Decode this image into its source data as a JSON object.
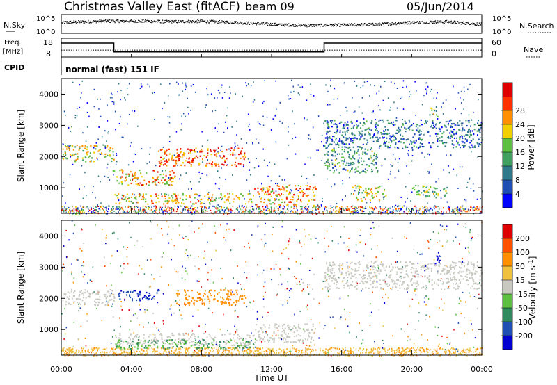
{
  "header": {
    "title": "Christmas Valley East (fitACF)",
    "beam": "beam 09",
    "date": "05/Jun/2014"
  },
  "noise_panel": {
    "left_label": "N.Sky",
    "right_label": "N.Search",
    "left_ticks": [
      "10^5",
      "10^0"
    ],
    "right_ticks": [
      "10^5",
      "10^0"
    ]
  },
  "freq_panel": {
    "left_label_1": "Freq.",
    "left_label_2": "[MHz]",
    "left_ticks": [
      "18",
      "8"
    ],
    "right_ticks": [
      "60",
      "0"
    ],
    "right_label": "Nave",
    "cpid_label": "CPID",
    "cpid_value": "normal (fast) 151 IF"
  },
  "chart_data": [
    {
      "type": "line",
      "name": "noise",
      "x": [
        "00:00",
        "24:00"
      ],
      "y_range_log": [
        0,
        5
      ],
      "description_series": [
        {
          "x": [
            0,
            2,
            4,
            6,
            8,
            10,
            12,
            14,
            16,
            18,
            20,
            22,
            24
          ],
          "y": [
            3.0,
            3.3,
            3.4,
            3.2,
            3.3,
            3.0,
            2.5,
            2.2,
            2.3,
            2.5,
            3.0,
            3.2,
            2.5
          ]
        }
      ]
    },
    {
      "type": "line",
      "name": "frequency-and-nave",
      "xlim_hours": [
        0,
        24
      ],
      "ylim_left": [
        8,
        18
      ],
      "ylim_right": [
        0,
        60
      ],
      "freq_steps": [
        {
          "from": 0,
          "to": 3.0,
          "value": 15.4
        },
        {
          "from": 3.0,
          "to": 15.0,
          "value": 10.7
        },
        {
          "from": 15.0,
          "to": 24,
          "value": 15.4
        }
      ],
      "nave_level": 22
    },
    {
      "type": "heatmap",
      "name": "power",
      "xlim_hours": [
        0,
        24
      ],
      "ylim": [
        180,
        4500
      ],
      "ylabel": "Slant Range [km]",
      "y_ticks": [
        1000,
        2000,
        3000,
        4000
      ],
      "colorbar": {
        "label": "Power [dB]",
        "ticks": [
          "4",
          "8",
          "12",
          "16",
          "20",
          "24",
          "28"
        ],
        "colors": [
          "#0000ff",
          "#1f4fb3",
          "#2f7a8a",
          "#3fa060",
          "#5dc040",
          "#f2d000",
          "#ff9000",
          "#ff3000",
          "#e00000"
        ]
      },
      "scatter_regions": [
        {
          "t0": 0,
          "t1": 3,
          "r0": 1850,
          "r1": 2400,
          "level": 18
        },
        {
          "t0": 2.9,
          "t1": 6.5,
          "r0": 1100,
          "r1": 1600,
          "level": 22
        },
        {
          "t0": 5.5,
          "t1": 10.5,
          "r0": 1700,
          "r1": 2300,
          "level": 26
        },
        {
          "t0": 3,
          "t1": 11,
          "r0": 500,
          "r1": 850,
          "level": 20
        },
        {
          "t0": 11,
          "t1": 14.5,
          "r0": 450,
          "r1": 1100,
          "level": 22
        },
        {
          "t0": 15,
          "t1": 18,
          "r0": 1500,
          "r1": 2300,
          "level": 12
        },
        {
          "t0": 15,
          "t1": 24,
          "r0": 2300,
          "r1": 3200,
          "level": 8
        },
        {
          "t0": 16.5,
          "t1": 18.5,
          "r0": 600,
          "r1": 1100,
          "level": 18
        },
        {
          "t0": 20,
          "t1": 22,
          "r0": 700,
          "r1": 1100,
          "level": 16
        },
        {
          "t0": 21,
          "t1": 21.5,
          "r0": 3300,
          "r1": 3700,
          "level": 16
        }
      ]
    },
    {
      "type": "heatmap",
      "name": "velocity",
      "xlim_hours": [
        0,
        24
      ],
      "ylim": [
        180,
        4500
      ],
      "ylabel": "Slant Range [km]",
      "xlabel": "Time UT",
      "y_ticks": [
        1000,
        2000,
        3000,
        4000
      ],
      "x_ticks": [
        "00:00",
        "04:00",
        "08:00",
        "12:00",
        "16:00",
        "20:00",
        "00:00"
      ],
      "colorbar": {
        "label": "Velocity [m s^-1]",
        "ticks": [
          "200",
          "100",
          "50",
          "15",
          "-15",
          "-50",
          "-100",
          "-200"
        ],
        "colors": [
          "#0000d0",
          "#1f4fb3",
          "#2f8a60",
          "#5dc040",
          "#c8c8c0",
          "#f0c040",
          "#ff9000",
          "#ff5000",
          "#e00000"
        ]
      },
      "scatter_regions": [
        {
          "t0": 0,
          "t1": 3,
          "r0": 1800,
          "r1": 2300,
          "level": 0
        },
        {
          "t0": 3.2,
          "t1": 5.6,
          "r0": 1950,
          "r1": 2300,
          "level": 150
        },
        {
          "t0": 6.5,
          "t1": 10.5,
          "r0": 1800,
          "r1": 2300,
          "level": -60
        },
        {
          "t0": 3,
          "t1": 11,
          "r0": 500,
          "r1": 900,
          "level": 0
        },
        {
          "t0": 3,
          "t1": 11,
          "r0": 400,
          "r1": 700,
          "level": 30
        },
        {
          "t0": 11,
          "t1": 14.5,
          "r0": 600,
          "r1": 1200,
          "level": 0
        },
        {
          "t0": 15,
          "t1": 24,
          "r0": 2300,
          "r1": 3200,
          "level": 0
        },
        {
          "t0": 21.2,
          "t1": 21.6,
          "r0": 3100,
          "r1": 3500,
          "level": 200
        }
      ]
    }
  ]
}
